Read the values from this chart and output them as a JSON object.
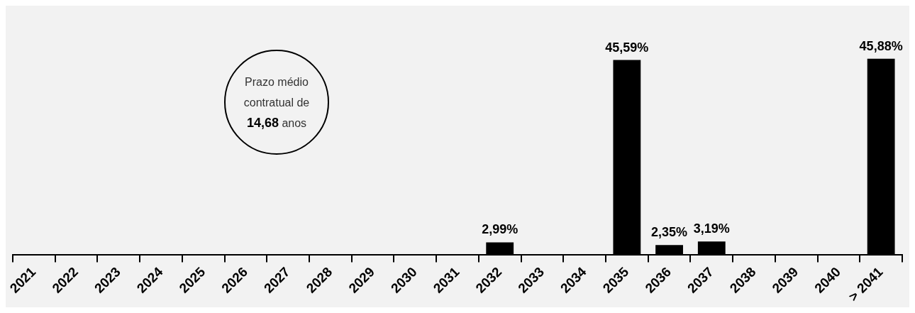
{
  "chart_data": {
    "type": "bar",
    "categories": [
      "2021",
      "2022",
      "2023",
      "2024",
      "2025",
      "2026",
      "2027",
      "2028",
      "2029",
      "2030",
      "2031",
      "2032",
      "2033",
      "2034",
      "2035",
      "2036",
      "2037",
      "2038",
      "2039",
      "2040",
      "> 2041"
    ],
    "values": [
      null,
      null,
      null,
      null,
      null,
      null,
      null,
      null,
      null,
      null,
      null,
      2.99,
      null,
      null,
      45.59,
      2.35,
      3.19,
      null,
      null,
      null,
      45.88
    ],
    "value_labels": [
      null,
      null,
      null,
      null,
      null,
      null,
      null,
      null,
      null,
      null,
      null,
      "2,99%",
      null,
      null,
      "45,59%",
      "2,35%",
      "3,19%",
      null,
      null,
      null,
      "45,88%"
    ],
    "color": "#000000",
    "annotations": [
      "Prazo médio contratual de 14,68 anos"
    ],
    "grid": false,
    "legend": false
  }
}
